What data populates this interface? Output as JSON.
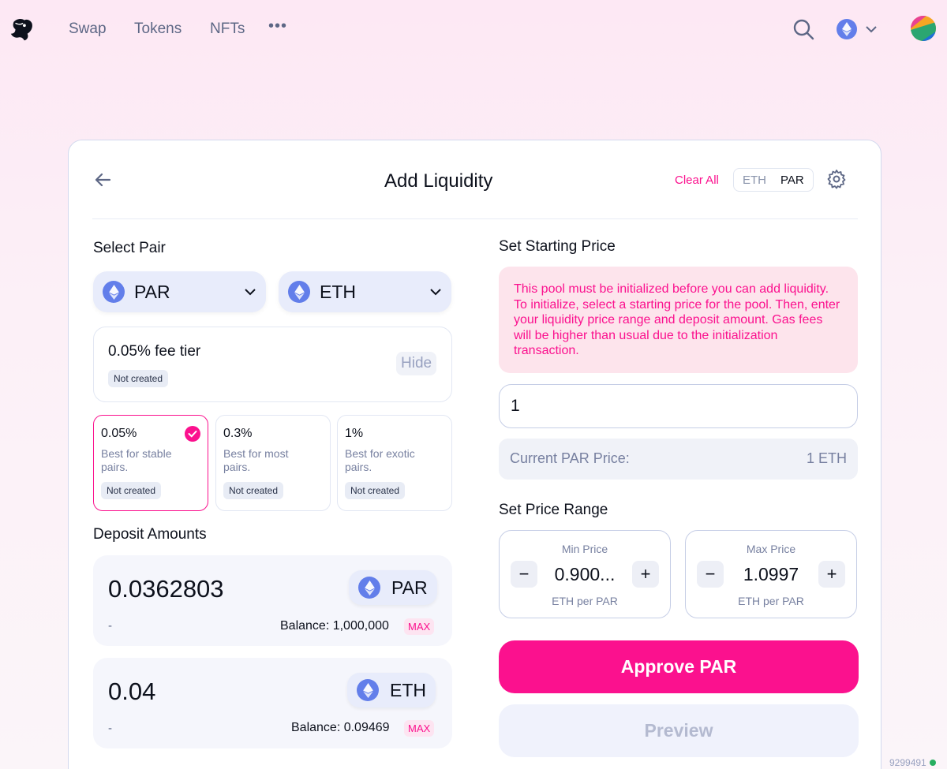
{
  "nav": {
    "links": [
      "Swap",
      "Tokens",
      "NFTs"
    ],
    "more_label": "•••"
  },
  "card": {
    "title": "Add Liquidity",
    "clear_all": "Clear All",
    "denom_options": [
      "ETH",
      "PAR"
    ],
    "denom_selected": "PAR"
  },
  "select_pair": {
    "label": "Select Pair",
    "token_a": "PAR",
    "token_b": "ETH"
  },
  "fee": {
    "title": "0.05% fee tier",
    "status": "Not created",
    "hide_label": "Hide",
    "tiers": [
      {
        "value": "0.05%",
        "desc": "Best for stable pairs.",
        "status": "Not created",
        "selected": true
      },
      {
        "value": "0.3%",
        "desc": "Best for most pairs.",
        "status": "Not created",
        "selected": false
      },
      {
        "value": "1%",
        "desc": "Best for exotic pairs.",
        "status": "Not created",
        "selected": false
      }
    ]
  },
  "deposit": {
    "label": "Deposit Amounts",
    "a": {
      "amount": "0.0362803",
      "token": "PAR",
      "fiat": "-",
      "balance": "Balance: 1,000,000",
      "max": "MAX"
    },
    "b": {
      "amount": "0.04",
      "token": "ETH",
      "fiat": "-",
      "balance": "Balance: 0.09469",
      "max": "MAX"
    }
  },
  "starting_price": {
    "label": "Set Starting Price",
    "warning": "This pool must be initialized before you can add liquidity. To initialize, select a starting price for the pool. Then, enter your liquidity price range and deposit amount. Gas fees will be higher than usual due to the initialization transaction.",
    "input_value": "1",
    "current_label": "Current PAR Price:",
    "current_value": "1 ETH"
  },
  "price_range": {
    "label": "Set Price Range",
    "min": {
      "title": "Min Price",
      "value": "0.900...",
      "unit": "ETH per PAR"
    },
    "max": {
      "title": "Max Price",
      "value": "1.0997",
      "unit": "ETH per PAR"
    },
    "minus": "−",
    "plus": "+"
  },
  "actions": {
    "approve": "Approve PAR",
    "preview": "Preview"
  },
  "footer": {
    "block": "9299491"
  },
  "colors": {
    "accent": "#fb118e",
    "eth": "#627eea"
  }
}
